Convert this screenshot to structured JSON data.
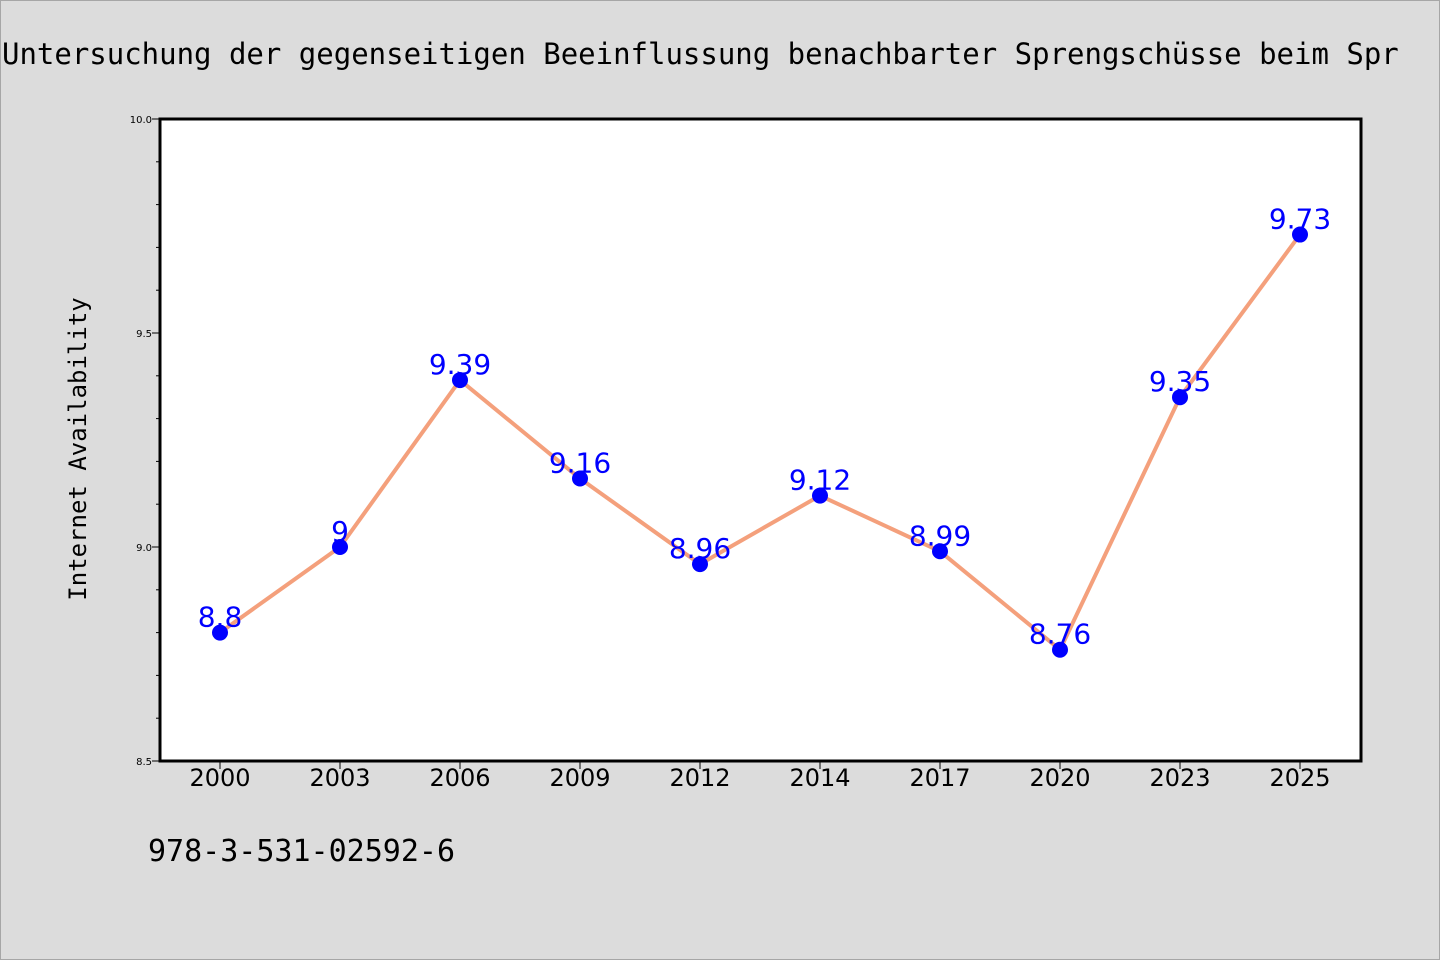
{
  "chart_data": {
    "type": "line",
    "title": "Untersuchung der gegenseitigen Beeinflussung benachbarter Sprengschüsse beim Spr",
    "xlabel": "",
    "ylabel": "Internet Availability",
    "categories": [
      "2000",
      "2003",
      "2006",
      "2009",
      "2012",
      "2014",
      "2017",
      "2020",
      "2023",
      "2025"
    ],
    "series": [
      {
        "name": "",
        "values": [
          8.8,
          9,
          9.39,
          9.16,
          8.96,
          9.12,
          8.99,
          8.76,
          9.35,
          9.73
        ],
        "labels": [
          "8.8",
          "9",
          "9.39",
          "9.16",
          "8.96",
          "9.12",
          "8.99",
          "8.76",
          "9.35",
          "9.73"
        ]
      }
    ],
    "ylim": [
      8.5,
      10.0
    ],
    "yticks": [
      "8.5",
      "9.0",
      "9.5",
      "10.0"
    ],
    "grid": false,
    "line_color": "#f4a07c",
    "marker_color": "#0000ff",
    "label_color": "#0000ff"
  },
  "footer": {
    "isbn": "978-3-531-02592-6"
  }
}
